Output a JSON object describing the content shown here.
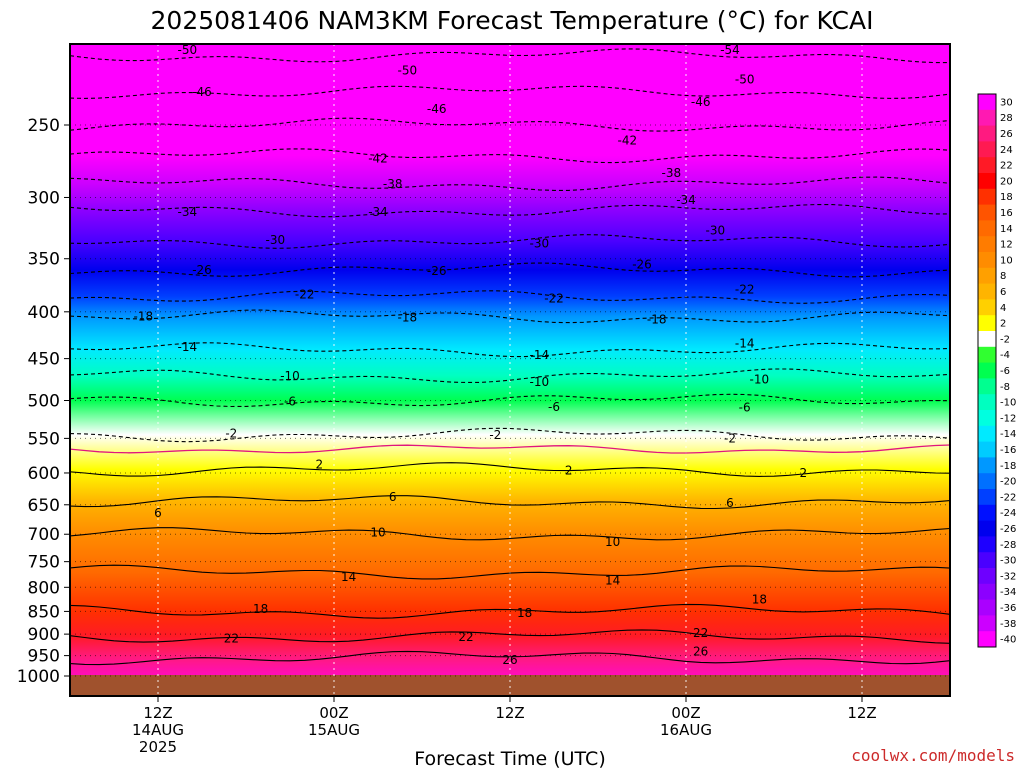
{
  "chart_data": {
    "type": "heatmap",
    "title": "2025081406 NAM3KM Forecast Temperature (°C) for KCAI",
    "xlabel": "Forecast Time (UTC)",
    "credit": "coolwx.com/models",
    "x_ticks": [
      {
        "hour": 6,
        "label": "12Z",
        "date": "14AUG",
        "year": "2025"
      },
      {
        "hour": 18,
        "label": "00Z",
        "date": "15AUG",
        "year": ""
      },
      {
        "hour": 30,
        "label": "12Z",
        "date": "",
        "year": ""
      },
      {
        "hour": 42,
        "label": "00Z",
        "date": "16AUG",
        "year": ""
      },
      {
        "hour": 54,
        "label": "12Z",
        "date": "",
        "year": ""
      }
    ],
    "xlim_hours": [
      0,
      60
    ],
    "y_axis": {
      "unit": "hPa",
      "scale": "log",
      "top_pressure": 200,
      "surface_pressure": 1000
    },
    "y_ticks": [
      250,
      300,
      350,
      400,
      450,
      500,
      550,
      600,
      650,
      700,
      750,
      800,
      850,
      900,
      950,
      1000
    ],
    "colorbar": {
      "labels": [
        "30",
        "28",
        "26",
        "24",
        "22",
        "20",
        "18",
        "16",
        "14",
        "12",
        "10",
        "8",
        "6",
        "4",
        "2",
        "-2",
        "-4",
        "-6",
        "-8",
        "-10",
        "-12",
        "-14",
        "-16",
        "-18",
        "-20",
        "-22",
        "-24",
        "-26",
        "-28",
        "-30",
        "-32",
        "-34",
        "-36",
        "-38",
        "-40"
      ],
      "colors": [
        "#ff00ff",
        "#ff19b2",
        "#ff1a80",
        "#ff1a52",
        "#ff1a26",
        "#ff0000",
        "#ff3000",
        "#ff5400",
        "#ff6a00",
        "#ff7c00",
        "#ff8c00",
        "#ffa000",
        "#ffb400",
        "#ffd000",
        "#ffff00",
        "#ffffff",
        "#30ff30",
        "#00ff50",
        "#00ff90",
        "#00ffc0",
        "#00ffe0",
        "#00eaff",
        "#00ccff",
        "#0098ff",
        "#0070ff",
        "#0040ff",
        "#0010ff",
        "#0000ee",
        "#1e00ff",
        "#4a00ff",
        "#6e00ff",
        "#8c00ff",
        "#aa00ff",
        "#cc00ff",
        "#ff00ff"
      ]
    },
    "temperature_profile": [
      {
        "p": 210,
        "t": -54
      },
      {
        "p": 230,
        "t": -50
      },
      {
        "p": 250,
        "t": -46
      },
      {
        "p": 270,
        "t": -42
      },
      {
        "p": 290,
        "t": -38
      },
      {
        "p": 310,
        "t": -34
      },
      {
        "p": 335,
        "t": -30
      },
      {
        "p": 360,
        "t": -26
      },
      {
        "p": 385,
        "t": -22
      },
      {
        "p": 405,
        "t": -18
      },
      {
        "p": 440,
        "t": -14
      },
      {
        "p": 470,
        "t": -10
      },
      {
        "p": 500,
        "t": -6
      },
      {
        "p": 545,
        "t": -2
      },
      {
        "p": 595,
        "t": 2
      },
      {
        "p": 645,
        "t": 6
      },
      {
        "p": 700,
        "t": 10
      },
      {
        "p": 770,
        "t": 14
      },
      {
        "p": 850,
        "t": 18
      },
      {
        "p": 905,
        "t": 22
      },
      {
        "p": 955,
        "t": 26
      }
    ],
    "contour_labels": [
      {
        "text": "-54",
        "hour": 45,
        "p": 207
      },
      {
        "text": "-50",
        "hour": 8,
        "p": 207
      },
      {
        "text": "-50",
        "hour": 23,
        "p": 218
      },
      {
        "text": "-50",
        "hour": 46,
        "p": 223
      },
      {
        "text": "-46",
        "hour": 9,
        "p": 230
      },
      {
        "text": "-46",
        "hour": 25,
        "p": 240
      },
      {
        "text": "-46",
        "hour": 43,
        "p": 236
      },
      {
        "text": "-42",
        "hour": 21,
        "p": 272
      },
      {
        "text": "-42",
        "hour": 38,
        "p": 260
      },
      {
        "text": "-38",
        "hour": 22,
        "p": 290
      },
      {
        "text": "-38",
        "hour": 41,
        "p": 282
      },
      {
        "text": "-34",
        "hour": 8,
        "p": 311
      },
      {
        "text": "-34",
        "hour": 21,
        "p": 311
      },
      {
        "text": "-34",
        "hour": 42,
        "p": 302
      },
      {
        "text": "-30",
        "hour": 14,
        "p": 334
      },
      {
        "text": "-30",
        "hour": 32,
        "p": 337
      },
      {
        "text": "-30",
        "hour": 44,
        "p": 326
      },
      {
        "text": "-26",
        "hour": 9,
        "p": 360
      },
      {
        "text": "-26",
        "hour": 25,
        "p": 361
      },
      {
        "text": "-26",
        "hour": 39,
        "p": 355
      },
      {
        "text": "-22",
        "hour": 16,
        "p": 383
      },
      {
        "text": "-22",
        "hour": 33,
        "p": 387
      },
      {
        "text": "-22",
        "hour": 46,
        "p": 378
      },
      {
        "text": "-18",
        "hour": 5,
        "p": 405
      },
      {
        "text": "-18",
        "hour": 23,
        "p": 406
      },
      {
        "text": "-18",
        "hour": 40,
        "p": 408
      },
      {
        "text": "-14",
        "hour": 8,
        "p": 437
      },
      {
        "text": "-14",
        "hour": 32,
        "p": 446
      },
      {
        "text": "-14",
        "hour": 46,
        "p": 433
      },
      {
        "text": "-10",
        "hour": 15,
        "p": 470
      },
      {
        "text": "-10",
        "hour": 32,
        "p": 477
      },
      {
        "text": "-10",
        "hour": 47,
        "p": 474
      },
      {
        "text": "-6",
        "hour": 15,
        "p": 501
      },
      {
        "text": "-6",
        "hour": 33,
        "p": 508
      },
      {
        "text": "-6",
        "hour": 46,
        "p": 509
      },
      {
        "text": "-2",
        "hour": 11,
        "p": 543
      },
      {
        "text": "-2",
        "hour": 29,
        "p": 545
      },
      {
        "text": "-2",
        "hour": 45,
        "p": 550
      },
      {
        "text": "2",
        "hour": 17,
        "p": 587
      },
      {
        "text": "2",
        "hour": 34,
        "p": 596
      },
      {
        "text": "2",
        "hour": 50,
        "p": 600
      },
      {
        "text": "6",
        "hour": 6,
        "p": 664
      },
      {
        "text": "6",
        "hour": 22,
        "p": 637
      },
      {
        "text": "6",
        "hour": 45,
        "p": 647
      },
      {
        "text": "10",
        "hour": 21,
        "p": 697
      },
      {
        "text": "10",
        "hour": 37,
        "p": 714
      },
      {
        "text": "14",
        "hour": 19,
        "p": 780
      },
      {
        "text": "14",
        "hour": 37,
        "p": 786
      },
      {
        "text": "18",
        "hour": 13,
        "p": 845
      },
      {
        "text": "18",
        "hour": 31,
        "p": 853
      },
      {
        "text": "18",
        "hour": 47,
        "p": 825
      },
      {
        "text": "22",
        "hour": 11,
        "p": 910
      },
      {
        "text": "22",
        "hour": 27,
        "p": 906
      },
      {
        "text": "22",
        "hour": 43,
        "p": 898
      },
      {
        "text": "26",
        "hour": 30,
        "p": 960
      },
      {
        "text": "26",
        "hour": 43,
        "p": 940
      }
    ]
  }
}
